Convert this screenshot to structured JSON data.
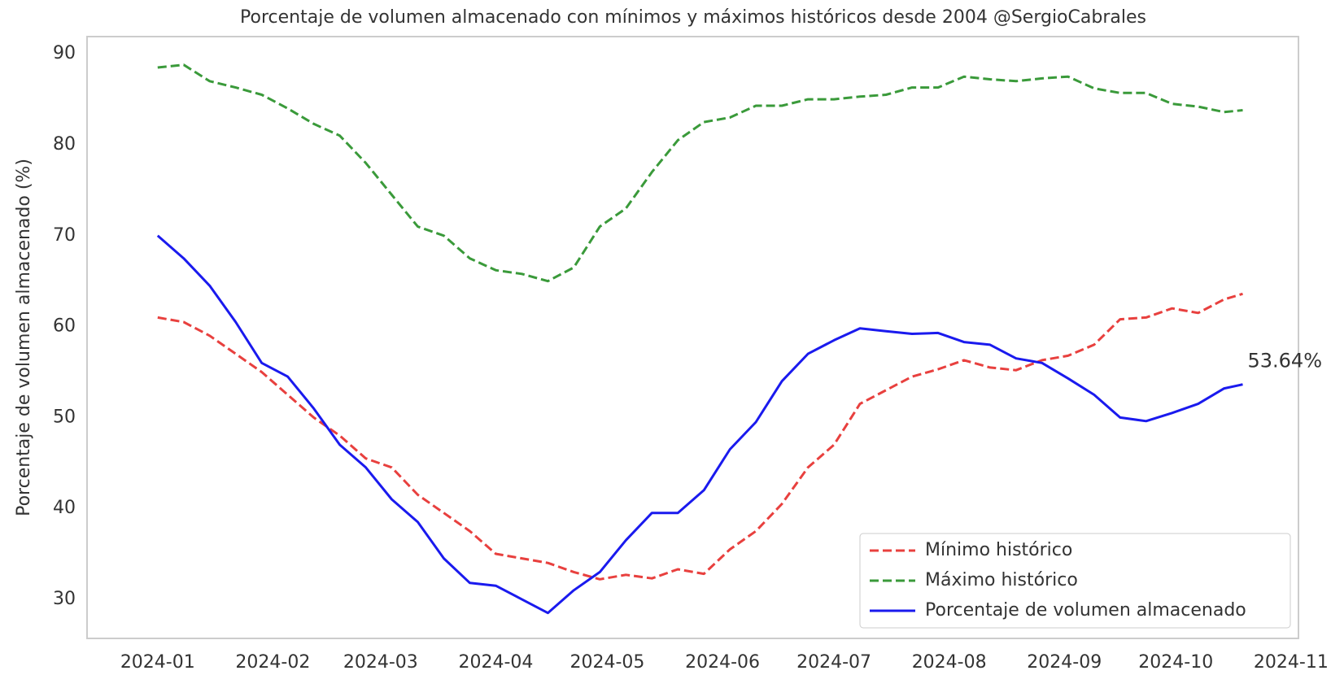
{
  "chart_data": {
    "type": "line",
    "title": "Porcentaje de volumen almacenado con mínimos y máximos históricos desde 2004 @SergioCabrales",
    "y_label": "Porcentaje de volumen almacenado (%)",
    "x": [
      0,
      7,
      14,
      21,
      28,
      35,
      42,
      49,
      56,
      63,
      70,
      77,
      84,
      91,
      98,
      105,
      112,
      119,
      126,
      133,
      140,
      147,
      154,
      161,
      168,
      175,
      182,
      189,
      196,
      203,
      210,
      217,
      224,
      231,
      238,
      245,
      252,
      259,
      266,
      273,
      280,
      287,
      292
    ],
    "series": [
      {
        "name": "Mínimo histórico",
        "color": "#e8403e",
        "dash": true,
        "values": [
          61,
          60.5,
          59,
          57,
          55,
          52.5,
          50,
          48,
          45.5,
          44.5,
          41.5,
          39.5,
          37.5,
          35,
          34.5,
          34,
          33,
          32.2,
          32.7,
          32.3,
          33.3,
          32.8,
          35.5,
          37.5,
          40.5,
          44.5,
          47,
          51.5,
          53,
          54.5,
          55.3,
          56.3,
          55.5,
          55.2,
          56.3,
          56.8,
          58,
          60.8,
          61,
          62,
          61.5,
          63,
          63.6
        ]
      },
      {
        "name": "Máximo histórico",
        "color": "#3a9a3a",
        "dash": true,
        "values": [
          88.5,
          88.8,
          87,
          86.3,
          85.5,
          84,
          82.3,
          81,
          78,
          74.5,
          71,
          70,
          67.5,
          66.2,
          65.8,
          65,
          66.5,
          71,
          73,
          77,
          80.5,
          82.5,
          83,
          84.3,
          84.3,
          85,
          85,
          85.3,
          85.5,
          86.3,
          86.3,
          87.5,
          87.2,
          87,
          87.3,
          87.5,
          86.2,
          85.7,
          85.7,
          84.5,
          84.2,
          83.6,
          83.8
        ]
      },
      {
        "name": "Porcentaje de volumen almacenado",
        "color": "#1a1aee",
        "dash": false,
        "values": [
          70,
          67.5,
          64.5,
          60.5,
          56,
          54.5,
          51,
          47,
          44.5,
          41,
          38.5,
          34.5,
          31.8,
          31.5,
          30,
          28.5,
          31,
          33,
          36.5,
          39.5,
          39.5,
          42,
          46.5,
          49.5,
          54,
          57,
          58.5,
          59.8,
          59.5,
          59.2,
          59.3,
          58.3,
          58,
          56.5,
          56,
          54.3,
          52.5,
          50,
          49.6,
          50.5,
          51.5,
          53.2,
          53.64
        ]
      }
    ],
    "annotation": "53.64%",
    "xlim": [
      -19,
      307
    ],
    "xticks": [
      {
        "value": 0,
        "label": "2024-01"
      },
      {
        "value": 31,
        "label": "2024-02"
      },
      {
        "value": 60,
        "label": "2024-03"
      },
      {
        "value": 91,
        "label": "2024-04"
      },
      {
        "value": 121,
        "label": "2024-05"
      },
      {
        "value": 152,
        "label": "2024-06"
      },
      {
        "value": 182,
        "label": "2024-07"
      },
      {
        "value": 213,
        "label": "2024-08"
      },
      {
        "value": 244,
        "label": "2024-09"
      },
      {
        "value": 274,
        "label": "2024-10"
      },
      {
        "value": 305,
        "label": "2024-11"
      }
    ],
    "ylim": [
      25.7,
      91.9
    ],
    "yticks": [
      30,
      40,
      50,
      60,
      70,
      80,
      90
    ],
    "grid": false,
    "legend": "lower right"
  }
}
